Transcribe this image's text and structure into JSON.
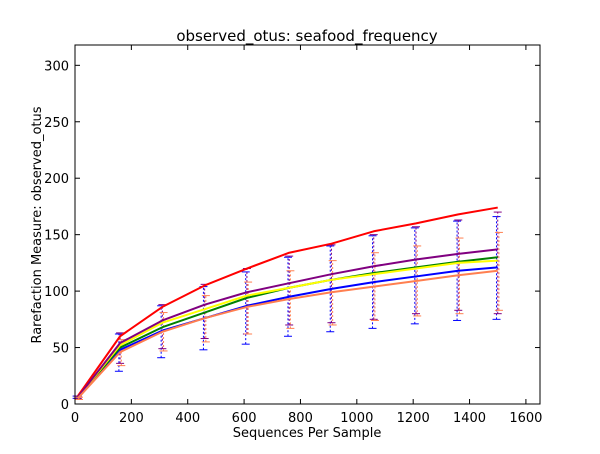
{
  "chart_data": {
    "type": "line",
    "title": "observed_otus: seafood_frequency",
    "xlabel": "Sequences Per Sample",
    "ylabel": "Rarefaction Measure: observed_otus",
    "xlim": [
      0,
      1650
    ],
    "ylim": [
      0,
      318
    ],
    "x_ticks": [
      0,
      200,
      400,
      600,
      800,
      1000,
      1200,
      1400,
      1600
    ],
    "y_ticks": [
      0,
      50,
      100,
      150,
      200,
      250,
      300
    ],
    "grid": false,
    "x": [
      10,
      160,
      310,
      460,
      610,
      760,
      910,
      1060,
      1210,
      1360,
      1500
    ],
    "series": [
      {
        "color": "#0000ff",
        "values": [
          6,
          48,
          65,
          76,
          87,
          95,
          102,
          108,
          113,
          118,
          121
        ],
        "err_low": [
          5,
          29,
          41,
          48,
          53,
          60,
          64,
          67,
          71,
          74,
          75
        ],
        "err_high": [
          7,
          62,
          87,
          104,
          117,
          130,
          140,
          149,
          156,
          162,
          166
        ]
      },
      {
        "color": "#008000",
        "values": [
          6,
          50,
          68,
          81,
          94,
          103,
          110,
          116,
          121,
          126,
          130
        ]
      },
      {
        "color": "#ff0000",
        "values": [
          7,
          60,
          86,
          105,
          120,
          134,
          142,
          153,
          160,
          168,
          174
        ]
      },
      {
        "color": "#ffff00",
        "values": [
          6,
          52,
          72,
          84,
          96,
          103,
          110,
          115,
          120,
          125,
          127
        ]
      },
      {
        "color": "#800080",
        "values": [
          6,
          54,
          74,
          88,
          99,
          107,
          115,
          122,
          128,
          133,
          137
        ],
        "err_low": [
          5,
          36,
          49,
          58,
          62,
          70,
          72,
          75,
          80,
          83,
          80
        ],
        "err_high": [
          7,
          63,
          88,
          106,
          120,
          131,
          141,
          150,
          157,
          163,
          170
        ]
      },
      {
        "color": "#ff7f50",
        "values": [
          5,
          46,
          64,
          76,
          86,
          93,
          99,
          104,
          109,
          114,
          118
        ],
        "err_low": [
          4,
          34,
          47,
          55,
          62,
          67,
          70,
          74,
          78,
          80,
          83
        ],
        "err_high": [
          6,
          57,
          81,
          96,
          108,
          118,
          127,
          134,
          140,
          147,
          152
        ]
      }
    ]
  }
}
